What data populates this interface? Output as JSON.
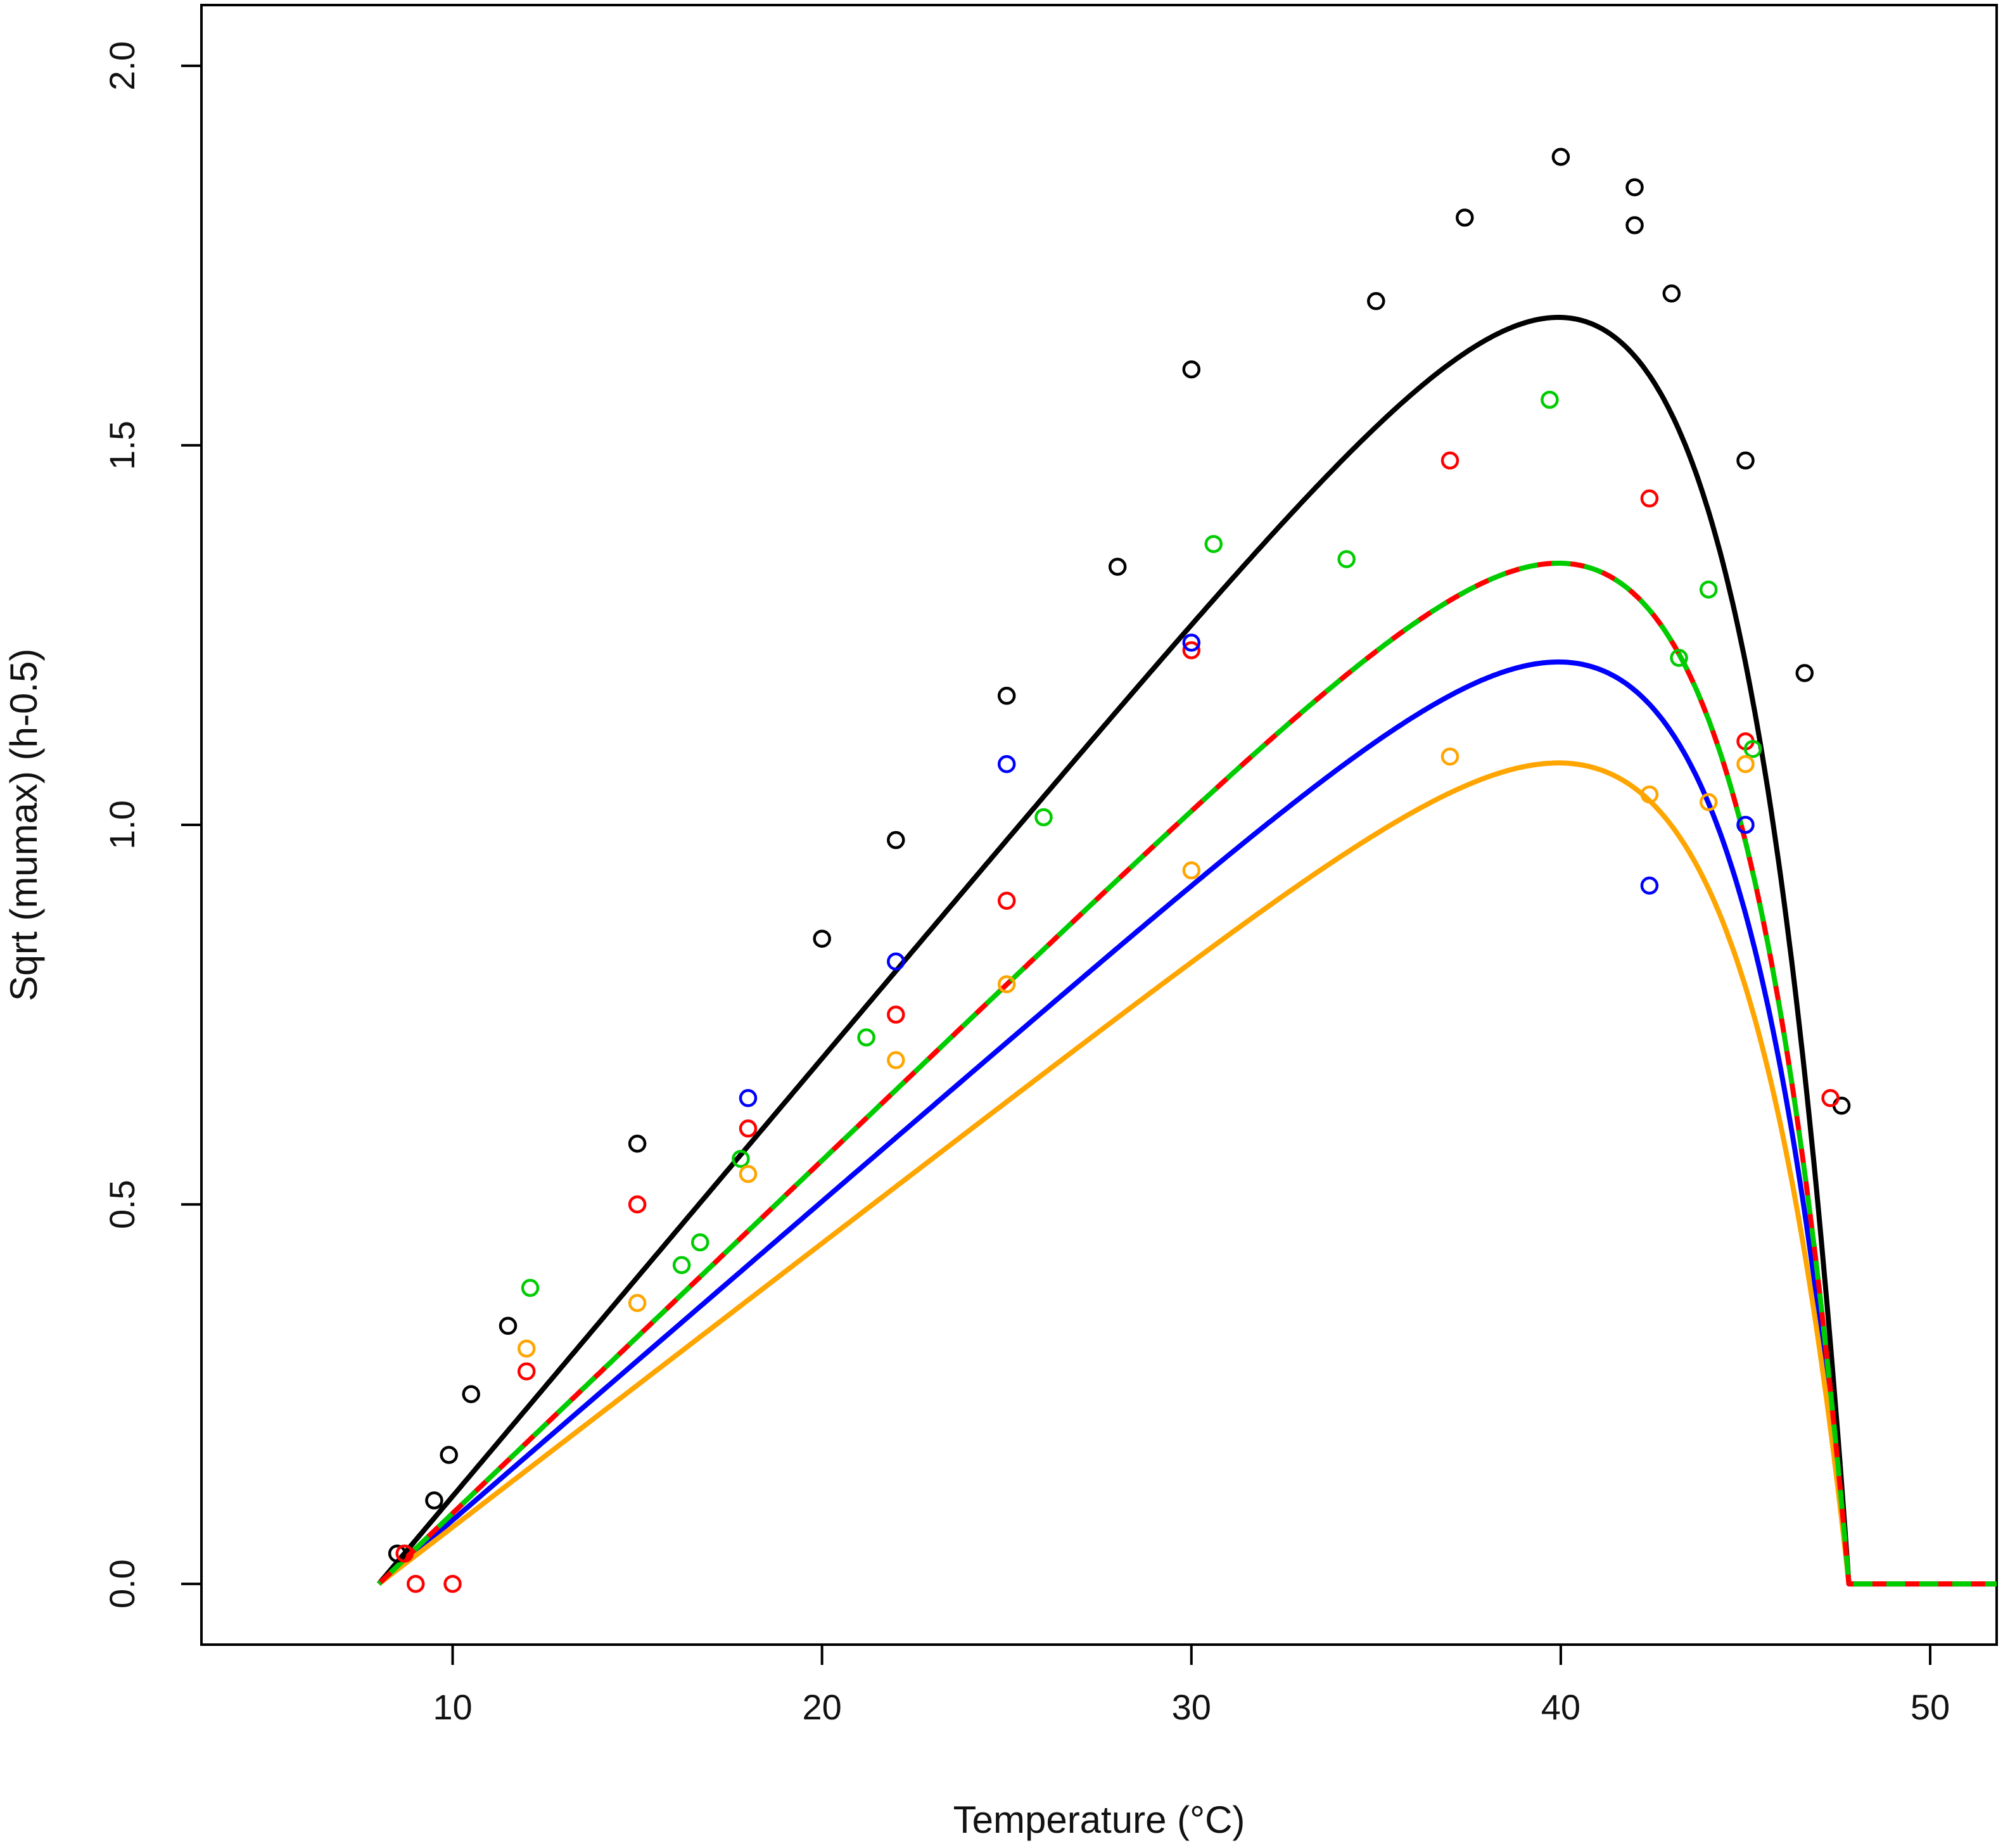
{
  "chart_data": {
    "type": "scatter",
    "title": "",
    "xlabel": "Temperature (°C)",
    "ylabel": "Sqrt (mumax) (h-0.5)",
    "xlim": [
      3.2,
      51.8
    ],
    "ylim": [
      -0.08,
      2.08
    ],
    "xticks": [
      10,
      20,
      30,
      40,
      50
    ],
    "yticks": [
      0.0,
      0.5,
      1.0,
      1.5,
      2.0
    ],
    "ytick_labels": [
      "0.0",
      "0.5",
      "1.0",
      "1.5",
      "2.0"
    ],
    "grid": false,
    "legend": "none",
    "curve_params": {
      "tmin": 8.0,
      "tmax": 47.8,
      "c": 0.3
    },
    "series": [
      {
        "color": "#000000",
        "dash": "solid",
        "b": 0.0577,
        "points": [
          [
            8.5,
            0.04
          ],
          [
            9.5,
            0.11
          ],
          [
            9.9,
            0.17
          ],
          [
            10.5,
            0.25
          ],
          [
            11.5,
            0.34
          ],
          [
            15.0,
            0.58
          ],
          [
            20.0,
            0.85
          ],
          [
            22.0,
            0.98
          ],
          [
            25.0,
            1.17
          ],
          [
            28.0,
            1.34
          ],
          [
            30.0,
            1.6
          ],
          [
            35.0,
            1.69
          ],
          [
            37.4,
            1.8
          ],
          [
            40.0,
            1.88
          ],
          [
            42.0,
            1.84
          ],
          [
            42.0,
            1.79
          ],
          [
            43.0,
            1.7
          ],
          [
            45.0,
            1.48
          ],
          [
            46.6,
            1.2
          ],
          [
            47.6,
            0.63
          ]
        ]
      },
      {
        "color": "#ff0000",
        "dash": "dashed",
        "b": 0.0465,
        "points": [
          [
            8.7,
            0.04
          ],
          [
            9.0,
            0.0
          ],
          [
            10.0,
            0.0
          ],
          [
            12.0,
            0.28
          ],
          [
            15.0,
            0.5
          ],
          [
            18.0,
            0.6
          ],
          [
            22.0,
            0.75
          ],
          [
            25.0,
            0.9
          ],
          [
            30.0,
            1.23
          ],
          [
            37.0,
            1.48
          ],
          [
            42.4,
            1.43
          ],
          [
            45.0,
            1.11
          ],
          [
            47.3,
            0.64
          ]
        ]
      },
      {
        "color": "#00cc00",
        "dash": "dashed",
        "b": 0.0465,
        "points": [
          [
            12.1,
            0.39
          ],
          [
            16.2,
            0.42
          ],
          [
            16.7,
            0.45
          ],
          [
            17.8,
            0.56
          ],
          [
            21.2,
            0.72
          ],
          [
            26.0,
            1.01
          ],
          [
            30.6,
            1.37
          ],
          [
            34.2,
            1.35
          ],
          [
            39.7,
            1.56
          ],
          [
            43.2,
            1.22
          ],
          [
            44.0,
            1.31
          ],
          [
            45.2,
            1.1
          ]
        ]
      },
      {
        "color": "#0000ff",
        "dash": "solid",
        "b": 0.042,
        "points": [
          [
            18.0,
            0.64
          ],
          [
            22.0,
            0.82
          ],
          [
            25.0,
            1.08
          ],
          [
            30.0,
            1.24
          ],
          [
            42.4,
            0.92
          ],
          [
            45.0,
            1.0
          ]
        ]
      },
      {
        "color": "#ffa500",
        "dash": "solid",
        "b": 0.0374,
        "points": [
          [
            12.0,
            0.31
          ],
          [
            15.0,
            0.37
          ],
          [
            18.0,
            0.54
          ],
          [
            22.0,
            0.69
          ],
          [
            25.0,
            0.79
          ],
          [
            30.0,
            0.94
          ],
          [
            37.0,
            1.09
          ],
          [
            42.4,
            1.04
          ],
          [
            44.0,
            1.03
          ],
          [
            45.0,
            1.08
          ]
        ]
      }
    ]
  }
}
